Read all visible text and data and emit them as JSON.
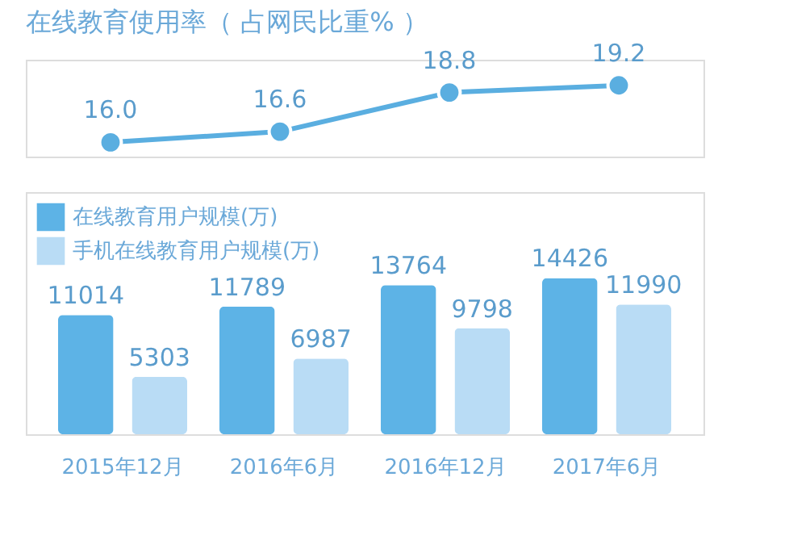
{
  "chart_data": [
    {
      "type": "line",
      "title": "在线教育使用率（ 占网民比重% ）",
      "categories": [
        null,
        null,
        null,
        null
      ],
      "series": [
        {
          "color": "#5aaee0",
          "values": [
            16.0,
            16.6,
            18.8,
            19.2
          ],
          "value_labels": [
            "16.0",
            "16.6",
            "18.8",
            "19.2"
          ]
        }
      ],
      "marker": "circle",
      "tick_labels": false
    },
    {
      "type": "bar",
      "categories": [
        "2015年12月",
        "2016年6月",
        "2016年12月",
        "2017年6月"
      ],
      "series": [
        {
          "name": "在线教育用户规模(万)",
          "color": "#5db3e6",
          "values": [
            11014,
            11789,
            13764,
            14426
          ]
        },
        {
          "name": "手机在线教育用户规模(万)",
          "color": "#b9dcf5",
          "values": [
            5303,
            6987,
            9798,
            11990
          ]
        }
      ],
      "data_labels": true,
      "legend": "top left",
      "tick_labels": "x"
    }
  ]
}
